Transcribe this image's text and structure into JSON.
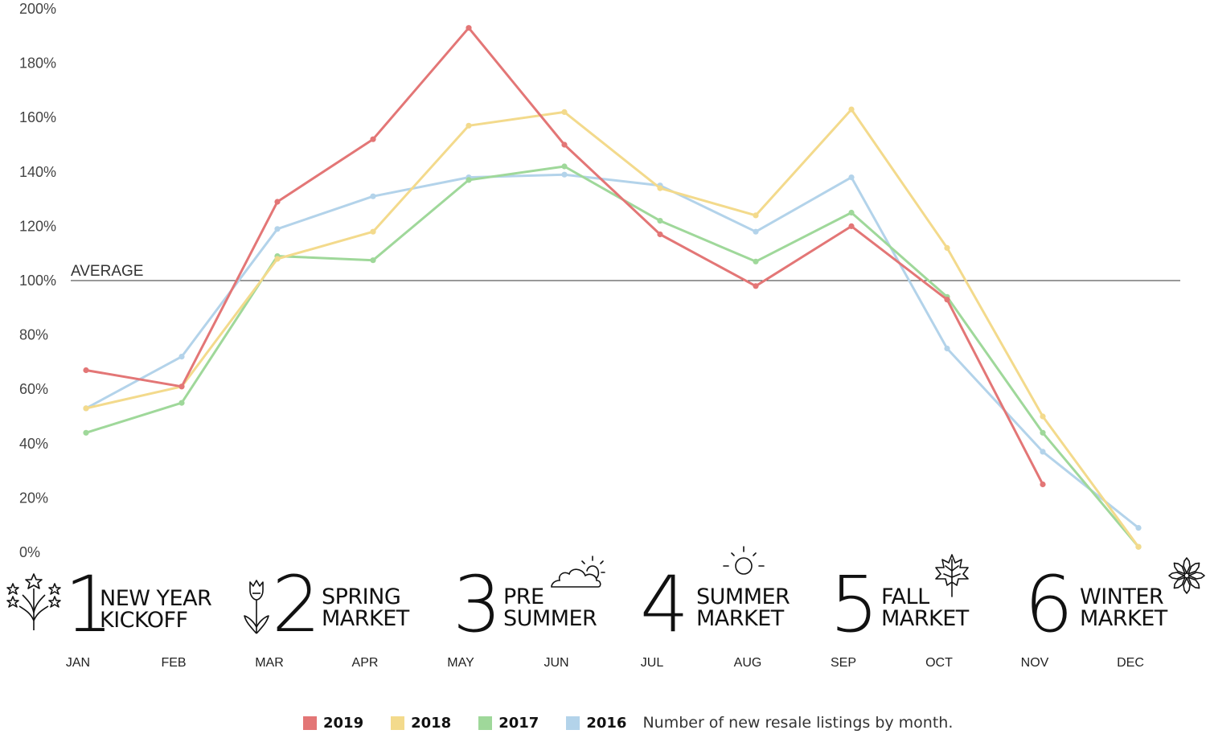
{
  "chart_data": {
    "type": "line",
    "categories": [
      "JAN",
      "FEB",
      "MAR",
      "APR",
      "MAY",
      "JUN",
      "JUL",
      "AUG",
      "SEP",
      "OCT",
      "NOV",
      "DEC"
    ],
    "ylim": [
      0,
      200
    ],
    "yticks": [
      "0%",
      "20%",
      "40%",
      "60%",
      "80%",
      "100%",
      "120%",
      "140%",
      "160%",
      "180%",
      "200%"
    ],
    "reference_line": {
      "value": 100,
      "label": "AVERAGE"
    },
    "grid": false,
    "legend_position": "bottom",
    "caption": "Number of new resale listings by month.",
    "series": [
      {
        "name": "2016",
        "color": "#b3d3ea",
        "values": [
          53,
          72,
          119,
          131,
          138,
          139,
          135,
          118,
          138,
          75,
          37,
          9
        ]
      },
      {
        "name": "2017",
        "color": "#9fd89a",
        "values": [
          44,
          55,
          109,
          107.5,
          137,
          142,
          122,
          107,
          125,
          94,
          44,
          2
        ]
      },
      {
        "name": "2018",
        "color": "#f3da8c",
        "values": [
          53,
          61,
          108,
          118,
          157,
          162,
          134,
          124,
          163,
          112,
          50,
          2
        ]
      },
      {
        "name": "2019",
        "color": "#e37676",
        "values": [
          67,
          61,
          129,
          152,
          193,
          150,
          117,
          98,
          120,
          93,
          25,
          null
        ]
      }
    ],
    "legend_order": [
      "2019",
      "2018",
      "2017",
      "2016"
    ]
  },
  "seasons": [
    {
      "number": "1",
      "line1": "NEW YEAR",
      "line2": "KICKOFF",
      "icon": "fireworks-icon"
    },
    {
      "number": "2",
      "line1": "SPRING",
      "line2": "MARKET",
      "icon": "tulip-icon"
    },
    {
      "number": "3",
      "line1": "PRE",
      "line2": "SUMMER",
      "icon": "sun-cloud-icon"
    },
    {
      "number": "4",
      "line1": "SUMMER",
      "line2": "MARKET",
      "icon": "sun-icon"
    },
    {
      "number": "5",
      "line1": "FALL",
      "line2": "MARKET",
      "icon": "maple-leaf-icon"
    },
    {
      "number": "6",
      "line1": "WINTER",
      "line2": "MARKET",
      "icon": "snowflake-icon"
    }
  ]
}
